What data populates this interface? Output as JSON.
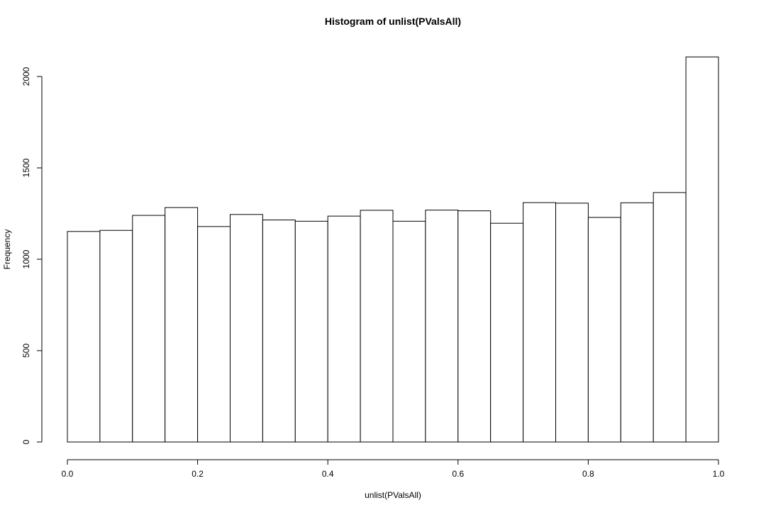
{
  "chart_data": {
    "type": "bar",
    "subtype": "histogram",
    "title": "Histogram of unlist(PValsAll)",
    "xlabel": "unlist(PValsAll)",
    "ylabel": "Frequency",
    "bin_edges": [
      0.0,
      0.05,
      0.1,
      0.15,
      0.2,
      0.25,
      0.3,
      0.35,
      0.4,
      0.45,
      0.5,
      0.55,
      0.6,
      0.65,
      0.7,
      0.75,
      0.8,
      0.85,
      0.9,
      0.95,
      1.0
    ],
    "values": [
      1152,
      1158,
      1240,
      1283,
      1179,
      1245,
      1215,
      1208,
      1236,
      1268,
      1208,
      1269,
      1265,
      1197,
      1310,
      1307,
      1229,
      1309,
      1365,
      2107
    ],
    "xlim": [
      0,
      1
    ],
    "ylim": [
      0,
      2107
    ],
    "x_ticks": [
      0.0,
      0.2,
      0.4,
      0.6,
      0.8,
      1.0
    ],
    "x_tick_labels": [
      "0.0",
      "0.2",
      "0.4",
      "0.6",
      "0.8",
      "1.0"
    ],
    "y_ticks": [
      0,
      500,
      1000,
      1500,
      2000
    ],
    "y_tick_labels": [
      "0",
      "500",
      "1000",
      "1500",
      "2000"
    ],
    "grid": false,
    "legend": "none",
    "colors": {
      "bar_fill": "#ffffff",
      "bar_stroke": "#000000",
      "axis": "#000000"
    }
  }
}
